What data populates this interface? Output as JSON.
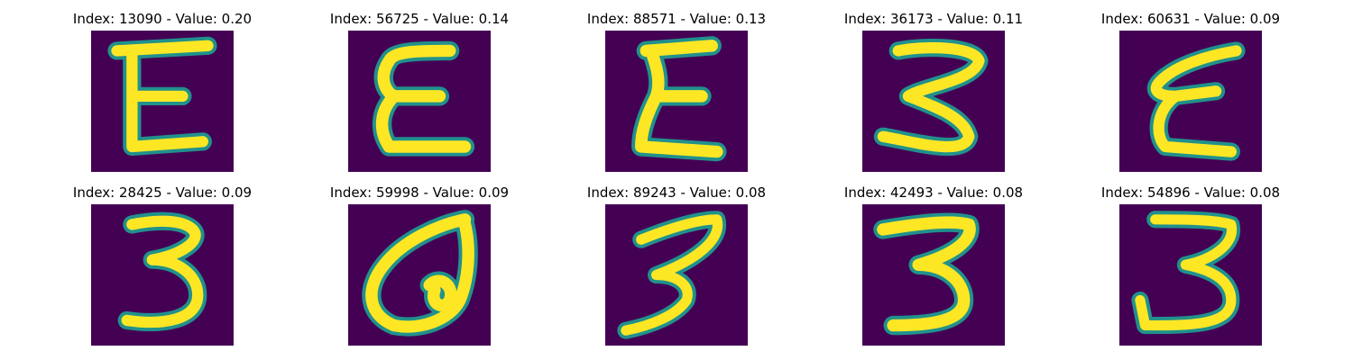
{
  "figure": {
    "panels": [
      {
        "index": "13090",
        "value": "0.20",
        "title": "Index: 13090 - Value: 0.20",
        "glyph": "E"
      },
      {
        "index": "56725",
        "value": "0.14",
        "title": "Index: 56725 - Value: 0.14",
        "glyph": "E"
      },
      {
        "index": "88571",
        "value": "0.13",
        "title": "Index: 88571 - Value: 0.13",
        "glyph": "E"
      },
      {
        "index": "36173",
        "value": "0.11",
        "title": "Index: 36173 - Value: 0.11",
        "glyph": "Z-like"
      },
      {
        "index": "60631",
        "value": "0.09",
        "title": "Index: 60631 - Value: 0.09",
        "glyph": "E"
      },
      {
        "index": "28425",
        "value": "0.09",
        "title": "Index: 28425 - Value: 0.09",
        "glyph": "3"
      },
      {
        "index": "59998",
        "value": "0.09",
        "title": "Index: 59998 - Value: 0.09",
        "glyph": "loop"
      },
      {
        "index": "89243",
        "value": "0.08",
        "title": "Index: 89243 - Value: 0.08",
        "glyph": "3"
      },
      {
        "index": "42493",
        "value": "0.08",
        "title": "Index: 42493 - Value: 0.08",
        "glyph": "3"
      },
      {
        "index": "54896",
        "value": "0.08",
        "title": "Index: 54896 - Value: 0.08",
        "glyph": "3"
      }
    ],
    "colors": {
      "background": "#440154",
      "stroke_outer": "#21918c",
      "stroke_inner": "#fde725"
    }
  }
}
